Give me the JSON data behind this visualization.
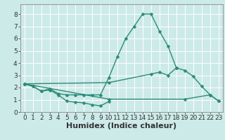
{
  "title": "",
  "xlabel": "Humidex (Indice chaleur)",
  "background_color": "#cceae8",
  "plot_bg_color": "#cceae8",
  "grid_color": "#ffffff",
  "line_color": "#2d8b78",
  "axis_color": "#888888",
  "font_color": "#333333",
  "xlim": [
    -0.5,
    23.5
  ],
  "ylim": [
    0,
    8.8
  ],
  "xticks": [
    0,
    1,
    2,
    3,
    4,
    5,
    6,
    7,
    8,
    9,
    10,
    11,
    12,
    13,
    14,
    15,
    16,
    17,
    18,
    19,
    20,
    21,
    22,
    23
  ],
  "yticks": [
    0,
    1,
    2,
    3,
    4,
    5,
    6,
    7,
    8
  ],
  "line1_y": [
    2.3,
    2.1,
    1.7,
    1.8,
    1.4,
    0.9,
    0.8,
    0.75,
    0.6,
    0.5,
    0.85
  ],
  "line2_x": [
    0,
    1,
    2,
    3,
    4,
    5,
    6,
    7,
    8,
    9,
    10,
    11,
    12,
    13,
    14,
    15,
    16,
    17,
    18
  ],
  "line2_y": [
    2.3,
    2.1,
    1.7,
    1.9,
    1.5,
    1.4,
    1.4,
    1.4,
    1.4,
    1.4,
    2.8,
    4.5,
    6.0,
    7.0,
    8.0,
    8.0,
    6.6,
    5.4,
    3.6
  ],
  "line3_x": [
    0,
    10,
    19,
    22,
    23
  ],
  "line3_y": [
    2.3,
    1.05,
    1.05,
    1.4,
    0.9
  ],
  "line4_x": [
    0,
    10,
    15,
    16,
    17,
    18,
    19,
    20,
    21,
    22,
    23
  ],
  "line4_y": [
    2.3,
    2.4,
    3.1,
    3.25,
    3.0,
    3.6,
    3.4,
    2.9,
    2.1,
    1.4,
    0.9
  ],
  "marker_size": 2.5,
  "line_width": 1.0,
  "tick_fontsize": 6.5,
  "xlabel_fontsize": 8,
  "fig_width": 3.2,
  "fig_height": 2.0,
  "dpi": 100
}
